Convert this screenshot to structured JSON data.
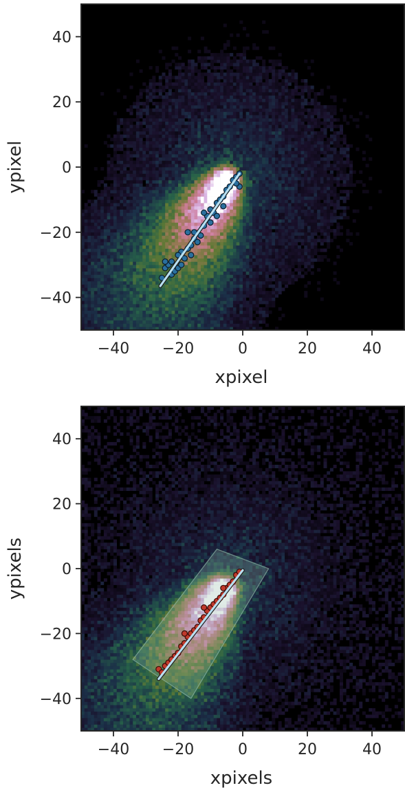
{
  "chart_data": [
    {
      "type": "heatmap",
      "title": "",
      "xlabel": "xpixel",
      "ylabel": "ypixel",
      "xlim": [
        -50,
        50
      ],
      "ylim": [
        -50,
        50
      ],
      "xticks": [
        -40,
        -20,
        0,
        20,
        40
      ],
      "yticks": [
        40,
        20,
        0,
        -20,
        -40
      ],
      "grid": false,
      "background_color": "#000000",
      "density": {
        "description_colormap": "cubehelix",
        "core": [
          -4,
          -3
        ],
        "direction_to": [
          -26,
          -37
        ],
        "peak_color": "#ffffff"
      },
      "points": {
        "color": "#2a6f9e",
        "edge_color": "#0b1d2b",
        "values": [
          [
            -25,
            -34
          ],
          [
            -24,
            -31
          ],
          [
            -23,
            -30
          ],
          [
            -22,
            -29
          ],
          [
            -22,
            -33
          ],
          [
            -21,
            -32
          ],
          [
            -20,
            -31
          ],
          [
            -19,
            -30
          ],
          [
            -19,
            -26
          ],
          [
            -18,
            -28
          ],
          [
            -17,
            -25
          ],
          [
            -16,
            -27
          ],
          [
            -16,
            -24
          ],
          [
            -15,
            -22
          ],
          [
            -15,
            -20
          ],
          [
            -14,
            -23
          ],
          [
            -13,
            -21
          ],
          [
            -12,
            -18
          ],
          [
            -11,
            -15
          ],
          [
            -10,
            -17
          ],
          [
            -10,
            -13
          ],
          [
            -9,
            -14
          ],
          [
            -8,
            -11
          ],
          [
            -8,
            -15
          ],
          [
            -7,
            -10
          ],
          [
            -6,
            -9
          ],
          [
            -5,
            -7
          ],
          [
            -4,
            -6
          ],
          [
            -3,
            -4
          ],
          [
            -2,
            -3
          ],
          [
            -1,
            -2
          ],
          [
            -1,
            -6
          ],
          [
            -2,
            -5
          ],
          [
            -6,
            -12
          ],
          [
            -12,
            -14
          ],
          [
            -20,
            -27
          ],
          [
            -24,
            -29
          ],
          [
            -17,
            -20
          ]
        ]
      },
      "fit_line": {
        "color": "#b8dff0",
        "from": [
          -25.5,
          -36.5
        ],
        "to": [
          -1,
          -2
        ]
      }
    },
    {
      "type": "heatmap",
      "title": "",
      "xlabel": "xpixels",
      "ylabel": "ypixels",
      "xlim": [
        -50,
        50
      ],
      "ylim": [
        -50,
        50
      ],
      "xticks": [
        -40,
        -20,
        0,
        20,
        40
      ],
      "yticks": [
        40,
        20,
        0,
        -20,
        -40
      ],
      "grid": false,
      "background_color": "#000000",
      "density": {
        "description_colormap": "cubehelix",
        "core": [
          -5,
          -5
        ],
        "direction_to": [
          -27,
          -36
        ],
        "peak_color": "#ffffff"
      },
      "box": {
        "color": "#8fb8a6",
        "corners": [
          [
            -8,
            6
          ],
          [
            8,
            0
          ],
          [
            -16,
            -40
          ],
          [
            -34,
            -28
          ]
        ]
      },
      "points": {
        "color": "#c0392b",
        "edge_color": "#3a0a06",
        "values": [
          [
            -26,
            -31
          ],
          [
            -25,
            -32
          ],
          [
            -24,
            -30
          ],
          [
            -23,
            -29
          ],
          [
            -21,
            -27
          ],
          [
            -20,
            -26
          ],
          [
            -19,
            -24
          ],
          [
            -18,
            -23
          ],
          [
            -17,
            -21
          ],
          [
            -16,
            -20
          ],
          [
            -15,
            -19
          ],
          [
            -14,
            -18
          ],
          [
            -13,
            -16
          ],
          [
            -12,
            -15
          ],
          [
            -11,
            -13
          ],
          [
            -10,
            -12
          ],
          [
            -9,
            -11
          ],
          [
            -8,
            -10
          ],
          [
            -7,
            -9
          ],
          [
            -6,
            -8
          ],
          [
            -5,
            -6
          ],
          [
            -4,
            -5
          ],
          [
            -3,
            -4
          ],
          [
            -2,
            -2
          ],
          [
            -1,
            -1
          ],
          [
            -22,
            -28
          ],
          [
            -18,
            -20
          ],
          [
            -12,
            -12
          ],
          [
            -6,
            -6
          ]
        ]
      },
      "fit_line": {
        "color": "#b8dff0",
        "from": [
          -26,
          -34
        ],
        "to": [
          0,
          -0.5
        ]
      }
    }
  ]
}
